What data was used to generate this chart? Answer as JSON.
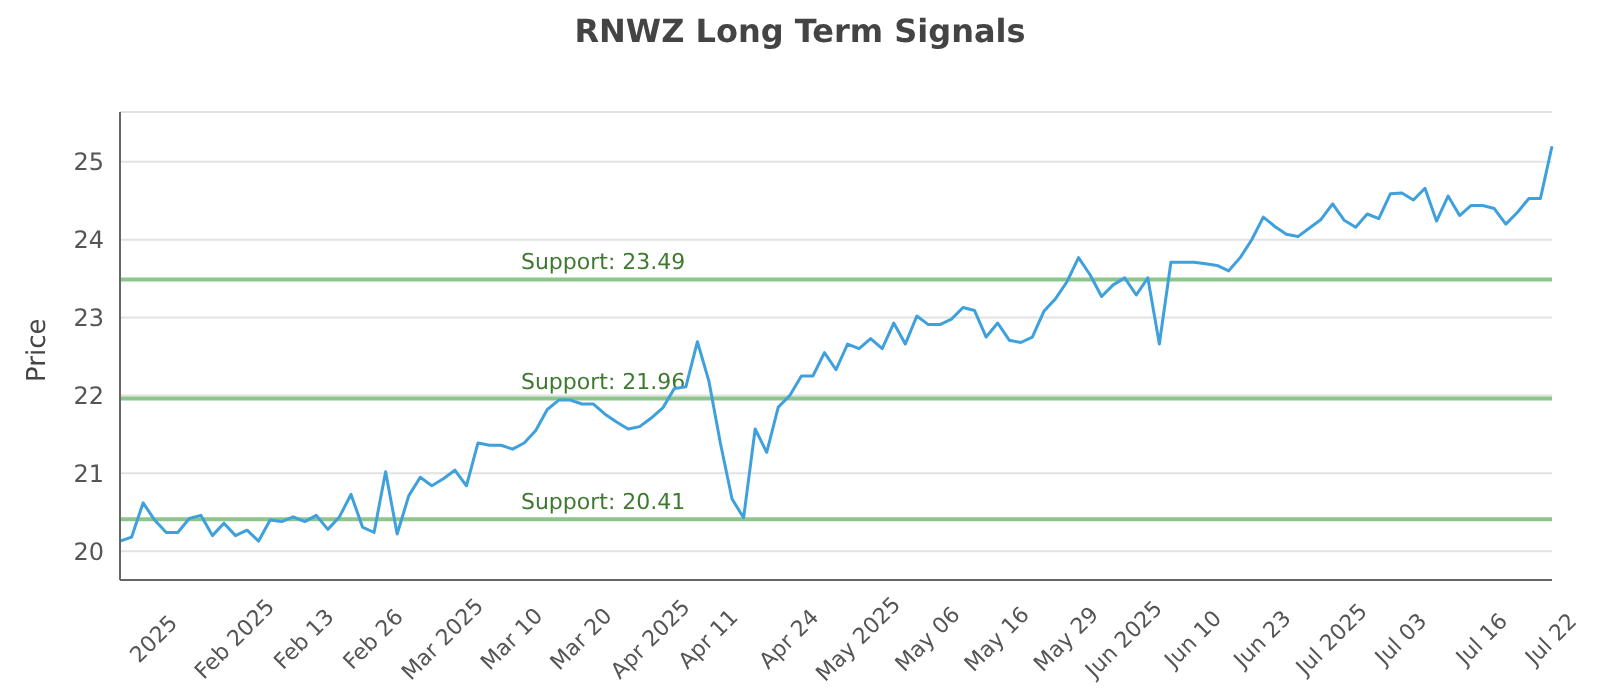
{
  "chart_data": {
    "type": "line",
    "title": "RNWZ Long Term Signals",
    "ylabel": "Price",
    "categories": [
      null,
      null,
      null,
      "2025",
      null,
      null,
      null,
      null,
      null,
      null,
      "Feb 2025",
      null,
      null,
      null,
      null,
      null,
      "Feb 13",
      null,
      null,
      null,
      null,
      null,
      "Feb 26",
      null,
      null,
      null,
      null,
      null,
      "Mar 2025",
      null,
      null,
      null,
      null,
      null,
      "Mar 10",
      null,
      null,
      null,
      null,
      null,
      "Mar 20",
      null,
      null,
      null,
      null,
      null,
      "Apr 2025",
      null,
      null,
      null,
      null,
      "Apr 11",
      null,
      null,
      null,
      null,
      null,
      null,
      "Apr 24",
      null,
      null,
      null,
      null,
      null,
      "May 2025",
      null,
      null,
      null,
      null,
      null,
      "May 06",
      null,
      null,
      null,
      null,
      null,
      "May 16",
      null,
      null,
      null,
      null,
      null,
      "May 29",
      null,
      null,
      null,
      null,
      "Jun 2025",
      null,
      null,
      null,
      null,
      null,
      "Jun 10",
      null,
      null,
      null,
      null,
      null,
      "Jun 23",
      null,
      null,
      null,
      null,
      null,
      "Jul 2025",
      null,
      null,
      null,
      null,
      null,
      "Jul 03",
      null,
      null,
      null,
      null,
      null,
      null,
      "Jul 16",
      null,
      null,
      null,
      null,
      null,
      "Jul 22"
    ],
    "series": [
      {
        "color": "#3ea0dc",
        "values": [
          20.13,
          20.18,
          20.62,
          20.4,
          20.24,
          20.24,
          20.42,
          20.46,
          20.2,
          20.36,
          20.2,
          20.27,
          20.13,
          20.4,
          20.38,
          20.44,
          20.38,
          20.46,
          20.28,
          20.44,
          20.73,
          20.31,
          20.24,
          21.02,
          20.22,
          20.71,
          20.95,
          20.84,
          20.93,
          21.04,
          20.84,
          21.39,
          21.36,
          21.36,
          21.31,
          21.39,
          21.55,
          21.82,
          21.94,
          21.94,
          21.89,
          21.89,
          21.76,
          21.66,
          21.57,
          21.6,
          21.71,
          21.84,
          22.09,
          22.11,
          22.69,
          22.18,
          21.38,
          20.67,
          20.43,
          21.57,
          21.27,
          21.85,
          22.0,
          22.25,
          22.25,
          22.55,
          22.33,
          22.66,
          22.6,
          22.73,
          22.6,
          22.93,
          22.66,
          23.02,
          22.91,
          22.91,
          22.98,
          23.13,
          23.09,
          22.75,
          22.93,
          22.71,
          22.68,
          22.75,
          23.08,
          23.24,
          23.46,
          23.77,
          23.55,
          23.27,
          23.42,
          23.51,
          23.29,
          23.51,
          22.66,
          23.71,
          23.71,
          23.71,
          23.69,
          23.67,
          23.6,
          23.77,
          24.0,
          24.29,
          24.17,
          24.07,
          24.04,
          24.15,
          24.26,
          24.46,
          24.25,
          24.16,
          24.33,
          24.27,
          24.59,
          24.6,
          24.51,
          24.66,
          24.24,
          24.56,
          24.31,
          24.44,
          24.44,
          24.4,
          24.2,
          24.35,
          24.53,
          24.53,
          25.2
        ]
      }
    ],
    "ylim": [
      19.63,
      25.64
    ],
    "yticks": [
      20,
      21,
      22,
      23,
      24,
      25
    ],
    "grid": "y",
    "marker": "none",
    "line_style": "solid",
    "ref_lines": [
      {
        "axis": "y",
        "value": 23.49,
        "label": "Support: 23.49",
        "color": "#8cc68a"
      },
      {
        "axis": "y",
        "value": 21.96,
        "label": "Support: 21.96",
        "color": "#8cc68a"
      },
      {
        "axis": "y",
        "value": 20.41,
        "label": "Support: 20.41",
        "color": "#8cc68a"
      }
    ]
  }
}
